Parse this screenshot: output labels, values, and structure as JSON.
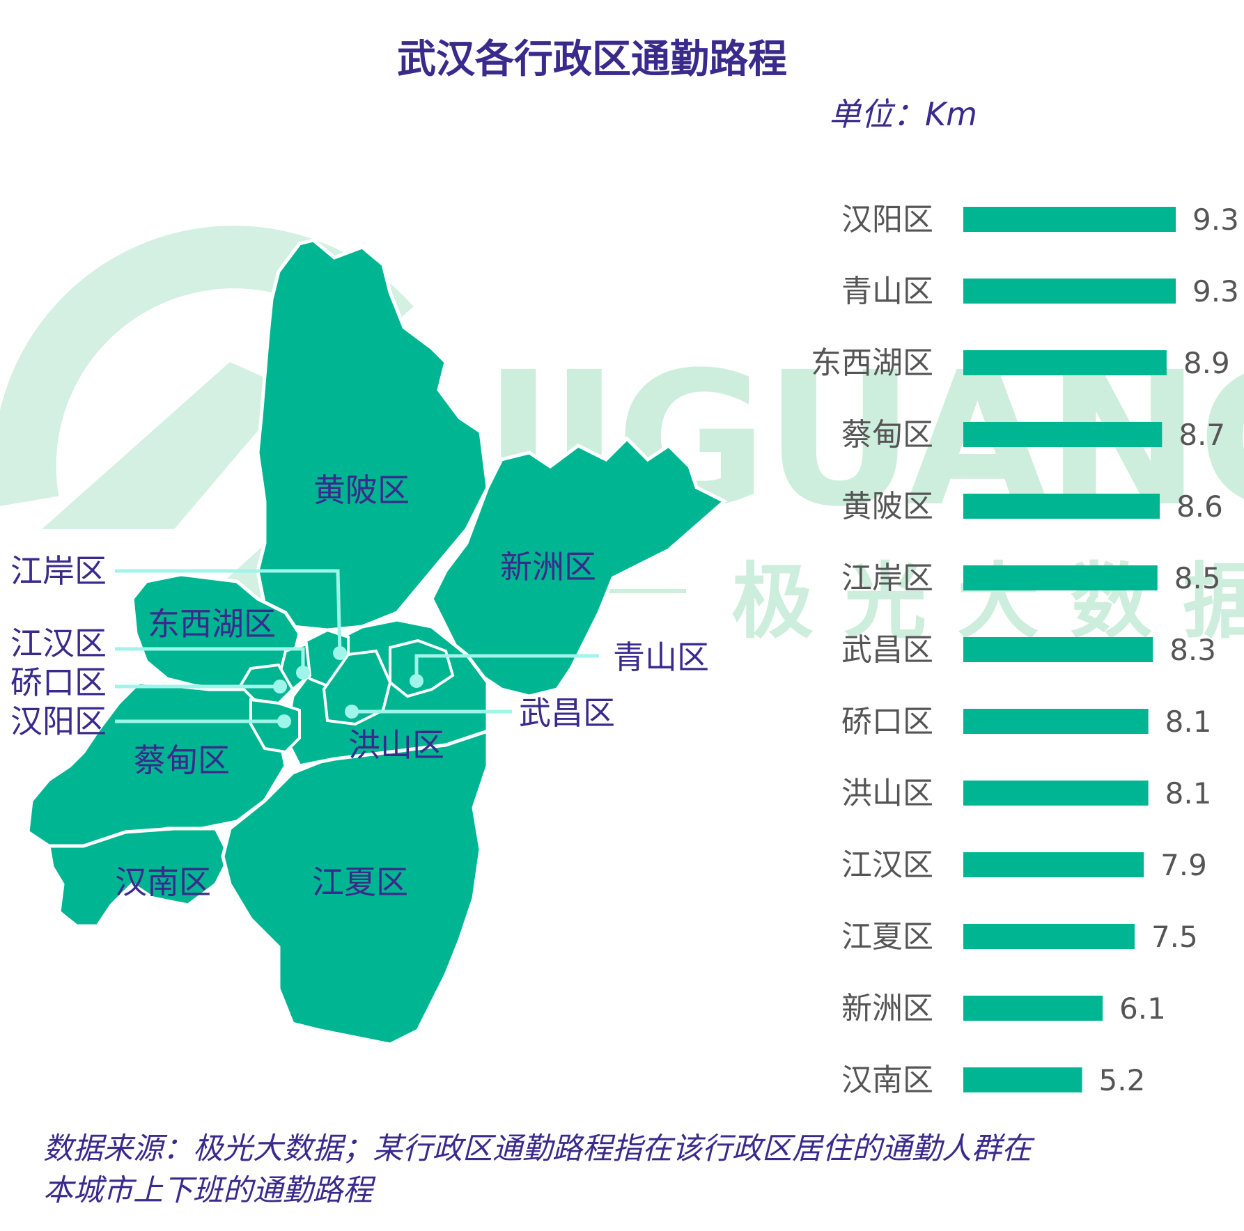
{
  "title": "武汉各行政区通勤路程",
  "unit": "单位：Km",
  "watermark": {
    "latin": "JIGUANG",
    "cn": "极光大数据"
  },
  "source_line1": "数据来源：极光大数据；某行政区通勤路程指在该行政区居住的通勤人群在",
  "source_line2": "本城市上下班的通勤路程",
  "colors": {
    "bar": "#00b592",
    "map": "#00b592",
    "title": "#3a2a8c",
    "leader": "#9ff5ea",
    "watermark": "#cdeedd"
  },
  "map_labels": {
    "huangpi": "黄陂区",
    "xinzhou": "新洲区",
    "dongxihu": "东西湖区",
    "caidian": "蔡甸区",
    "hongshan": "洪山区",
    "hannan": "汉南区",
    "jiangxia": "江夏区",
    "jiangan": "江岸区",
    "jianghan": "江汉区",
    "qiaokou": "硚口区",
    "hanyang": "汉阳区",
    "qingshan": "青山区",
    "wuchang": "武昌区"
  },
  "chart_data": {
    "type": "bar",
    "orientation": "horizontal",
    "title": "武汉各行政区通勤路程",
    "unit": "单位：Km",
    "categories": [
      "汉阳区",
      "青山区",
      "东西湖区",
      "蔡甸区",
      "黄陂区",
      "江岸区",
      "武昌区",
      "硚口区",
      "洪山区",
      "江汉区",
      "江夏区",
      "新洲区",
      "汉南区"
    ],
    "values": [
      9.3,
      9.3,
      8.9,
      8.7,
      8.6,
      8.5,
      8.3,
      8.1,
      8.1,
      7.9,
      7.5,
      6.1,
      5.2
    ],
    "xlim": [
      0,
      9.3
    ],
    "grid": false,
    "legend": "none"
  }
}
